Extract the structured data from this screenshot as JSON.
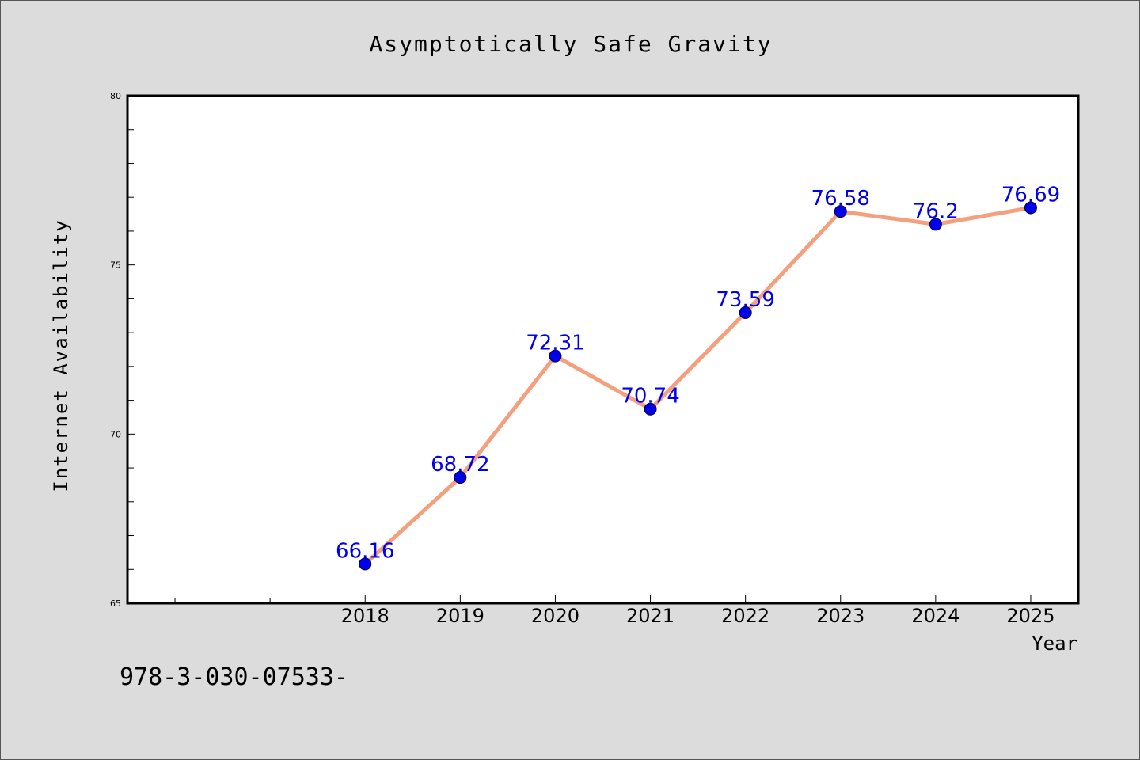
{
  "chart_data": {
    "type": "line",
    "title": "Asymptotically Safe Gravity",
    "xlabel": "Year",
    "ylabel": "Internet Availability",
    "x": [
      "2018",
      "2019",
      "2020",
      "2021",
      "2022",
      "2023",
      "2024",
      "2025"
    ],
    "x_min": 2015.5,
    "x_max": 2025.5,
    "ylim": [
      65,
      80
    ],
    "y_major_ticks": [
      65,
      70,
      75,
      80
    ],
    "y_tick_labels": [
      "65",
      "70",
      "75",
      "80"
    ],
    "y_minor_step": 1,
    "x_extra_minor_ticks": [
      2016,
      2017
    ],
    "series": [
      {
        "values": [
          66.16,
          68.72,
          72.31,
          70.74,
          73.59,
          76.58,
          76.2,
          76.69
        ],
        "data_labels": [
          "66.16",
          "68.72",
          "72.31",
          "70.74",
          "73.59",
          "76.58",
          "76.2",
          "76.69"
        ],
        "line_color": "#f4a07e",
        "marker_color": "#0000ee"
      }
    ],
    "label_color": "#0000ee",
    "grid": false,
    "legend": "none"
  },
  "footer": {
    "isbn": "978-3-030-07533-"
  }
}
